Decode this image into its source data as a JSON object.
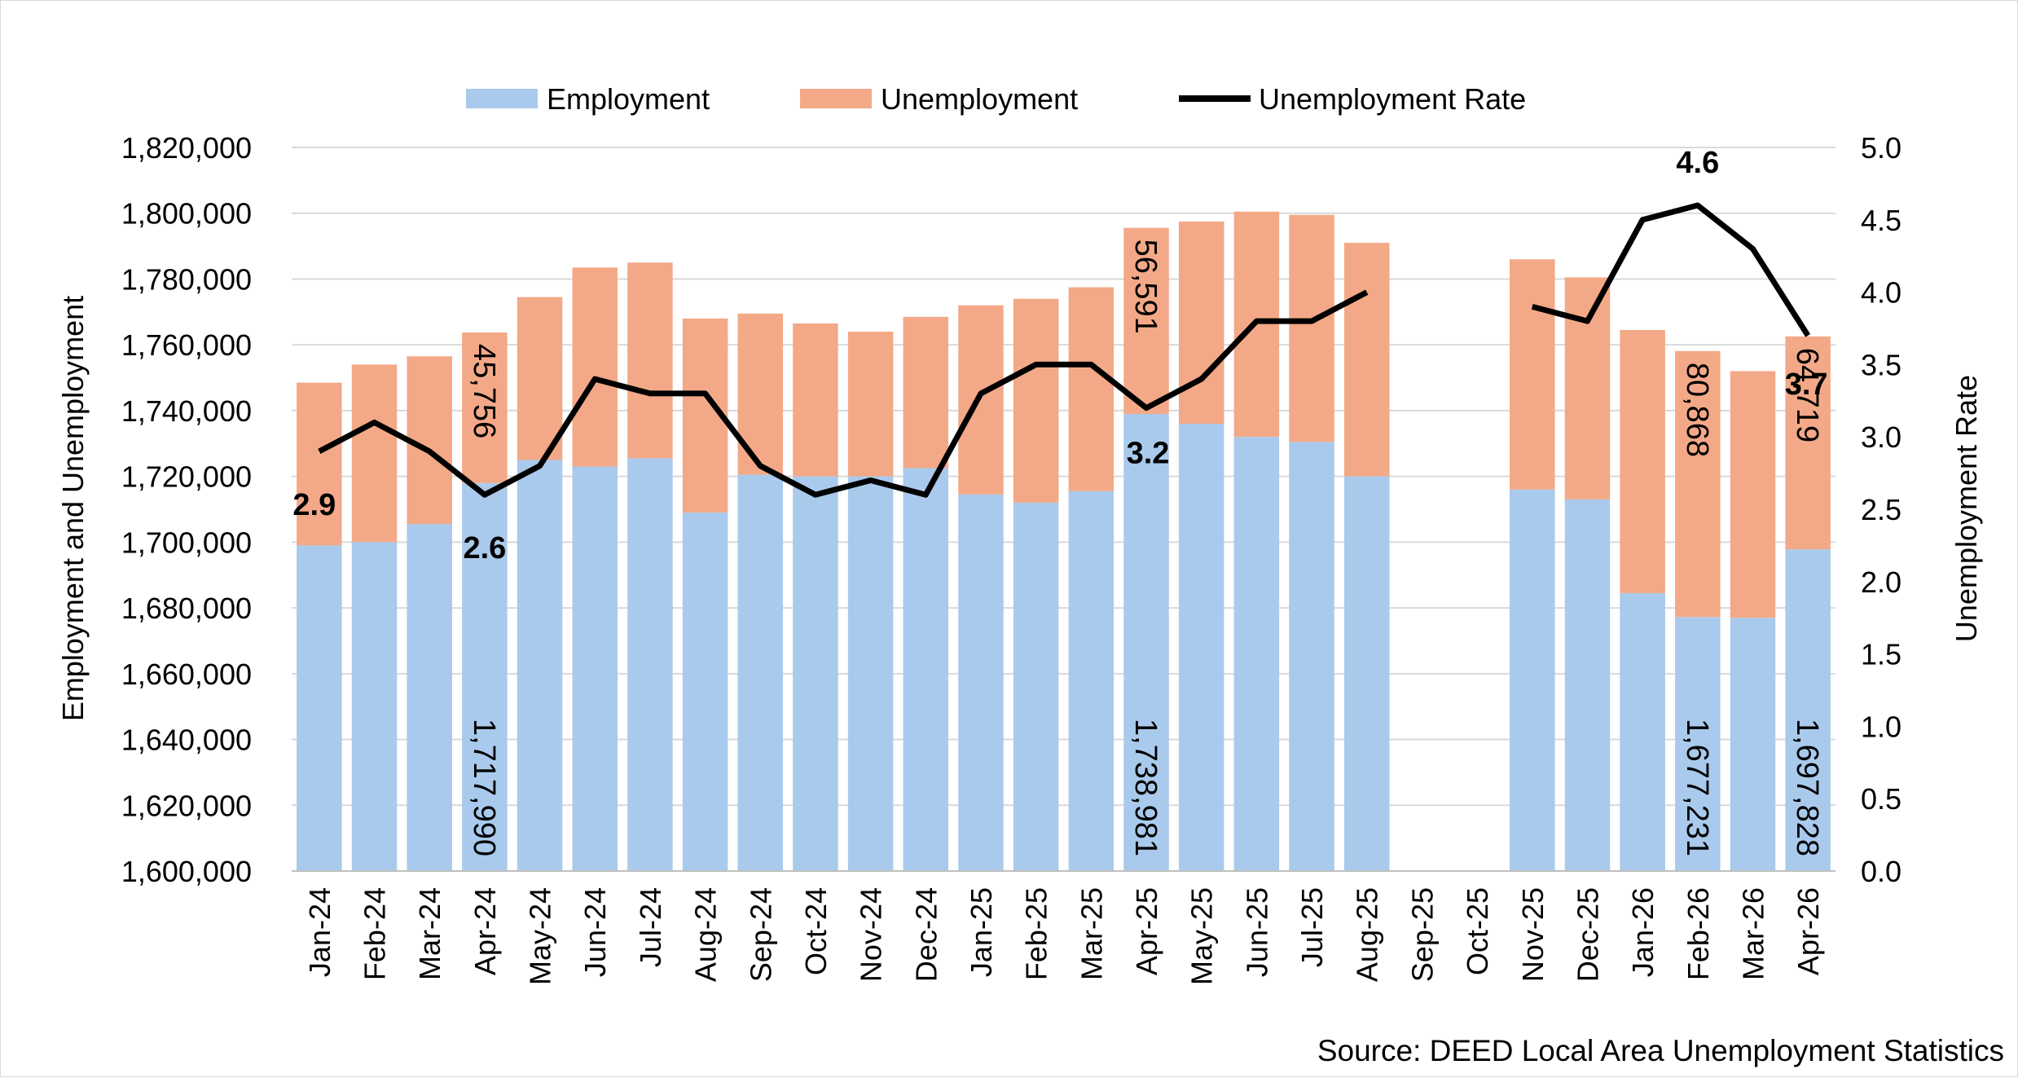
{
  "chart_data": {
    "type": "bar",
    "subtype": "stacked-bar-with-line",
    "categories": [
      "Jan-24",
      "Feb-24",
      "Mar-24",
      "Apr-24",
      "May-24",
      "Jun-24",
      "Jul-24",
      "Aug-24",
      "Sep-24",
      "Oct-24",
      "Nov-24",
      "Dec-24",
      "Jan-25",
      "Feb-25",
      "Mar-25",
      "Apr-25",
      "May-25",
      "Jun-25",
      "Jul-25",
      "Aug-25",
      "Sep-25",
      "Oct-25",
      "Nov-25",
      "Dec-25",
      "Jan-26",
      "Feb-26",
      "Mar-26",
      "Apr-26"
    ],
    "series": [
      {
        "name": "Employment",
        "type": "bar",
        "axis": "left",
        "color": "#a9caec",
        "values": [
          1699000,
          1700000,
          1705500,
          1717990,
          1725000,
          1723000,
          1725500,
          1709000,
          1720500,
          1720000,
          1720000,
          1722500,
          1714500,
          1712000,
          1715500,
          1738981,
          1736000,
          1732000,
          1730500,
          1720000,
          null,
          null,
          1716000,
          1713000,
          1684500,
          1677231,
          1677000,
          1697828
        ]
      },
      {
        "name": "Unemployment",
        "type": "bar",
        "axis": "left",
        "color": "#f3a987",
        "values": [
          49500,
          54000,
          51000,
          45756,
          49500,
          60500,
          59500,
          59000,
          49000,
          46500,
          44000,
          46000,
          57500,
          62000,
          62000,
          56591,
          61500,
          68500,
          69000,
          71000,
          null,
          null,
          70000,
          67500,
          80000,
          80868,
          75000,
          64719
        ]
      },
      {
        "name": "Unemployment Rate",
        "type": "line",
        "axis": "right",
        "color": "#000000",
        "values": [
          2.9,
          3.1,
          2.9,
          2.6,
          2.8,
          3.4,
          3.3,
          3.3,
          2.8,
          2.6,
          2.7,
          2.6,
          3.3,
          3.5,
          3.5,
          3.2,
          3.4,
          3.8,
          3.8,
          4.0,
          null,
          null,
          3.9,
          3.8,
          4.5,
          4.6,
          4.3,
          3.7
        ]
      }
    ],
    "data_labels": [
      {
        "series": "Employment",
        "category": "Apr-24",
        "text": "1,717,990"
      },
      {
        "series": "Unemployment",
        "category": "Apr-24",
        "text": "45,756"
      },
      {
        "series": "Employment",
        "category": "Apr-25",
        "text": "1,738,981"
      },
      {
        "series": "Unemployment",
        "category": "Apr-25",
        "text": "56,591"
      },
      {
        "series": "Employment",
        "category": "Feb-26",
        "text": "1,677,231"
      },
      {
        "series": "Unemployment",
        "category": "Feb-26",
        "text": "80,868"
      },
      {
        "series": "Employment",
        "category": "Apr-26",
        "text": "1,697,828"
      },
      {
        "series": "Unemployment",
        "category": "Apr-26",
        "text": "64,719"
      },
      {
        "series": "Unemployment Rate",
        "category": "Jan-24",
        "text": "2.9"
      },
      {
        "series": "Unemployment Rate",
        "category": "Apr-24",
        "text": "2.6"
      },
      {
        "series": "Unemployment Rate",
        "category": "Apr-25",
        "text": "3.2"
      },
      {
        "series": "Unemployment Rate",
        "category": "Feb-26",
        "text": "4.6"
      },
      {
        "series": "Unemployment Rate",
        "category": "Apr-26",
        "text": "3.7"
      }
    ],
    "ylabel": "Employment and Unemployment",
    "ylim": [
      1600000,
      1820000
    ],
    "yticks": [
      "1,600,000",
      "1,620,000",
      "1,640,000",
      "1,660,000",
      "1,680,000",
      "1,700,000",
      "1,720,000",
      "1,740,000",
      "1,760,000",
      "1,780,000",
      "1,800,000",
      "1,820,000"
    ],
    "y2label": "Unemployment Rate",
    "y2lim": [
      0,
      5
    ],
    "y2ticks": [
      "0.0",
      "0.5",
      "1.0",
      "1.5",
      "2.0",
      "2.5",
      "3.0",
      "3.5",
      "4.0",
      "4.5",
      "5.0"
    ],
    "grid": true,
    "legend_position": "top",
    "source": "Source: DEED Local Area Unemployment Statistics"
  }
}
